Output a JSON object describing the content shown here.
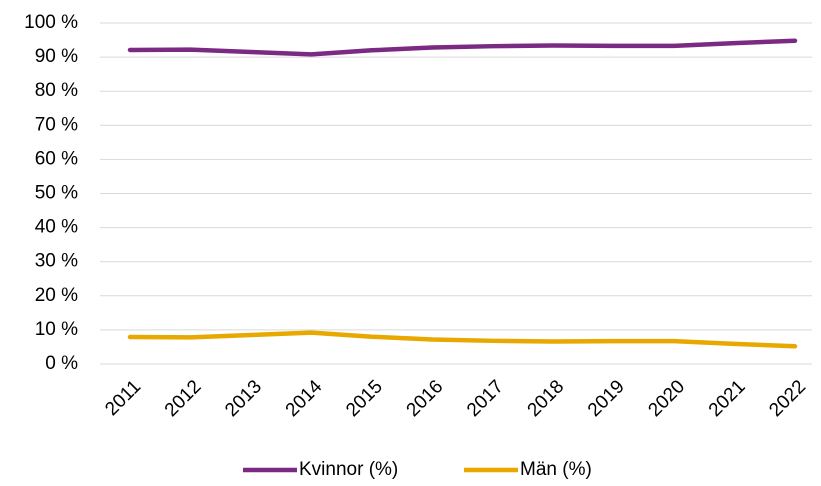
{
  "chart_data": {
    "type": "line",
    "categories": [
      "2011",
      "2012",
      "2013",
      "2014",
      "2015",
      "2016",
      "2017",
      "2018",
      "2019",
      "2020",
      "2021",
      "2022"
    ],
    "series": [
      {
        "name": "Kvinnor (%)",
        "color": "#7b2a83",
        "values": [
          92.1,
          92.2,
          91.5,
          90.8,
          92.0,
          92.8,
          93.2,
          93.4,
          93.3,
          93.3,
          94.1,
          94.8
        ]
      },
      {
        "name": "Män (%)",
        "color": "#e8a800",
        "values": [
          7.9,
          7.8,
          8.5,
          9.2,
          8.0,
          7.2,
          6.8,
          6.6,
          6.7,
          6.7,
          5.9,
          5.2
        ]
      }
    ],
    "ylim": [
      0,
      100
    ],
    "yticks": [
      {
        "value": 0,
        "label": "0 %"
      },
      {
        "value": 10,
        "label": "10 %"
      },
      {
        "value": 20,
        "label": "20 %"
      },
      {
        "value": 30,
        "label": "30 %"
      },
      {
        "value": 40,
        "label": "40 %"
      },
      {
        "value": 50,
        "label": "50 %"
      },
      {
        "value": 60,
        "label": "60 %"
      },
      {
        "value": 70,
        "label": "70 %"
      },
      {
        "value": 80,
        "label": "80 %"
      },
      {
        "value": 90,
        "label": "90 %"
      },
      {
        "value": 100,
        "label": "100 %"
      }
    ],
    "grid": true,
    "legend": "bottom"
  }
}
